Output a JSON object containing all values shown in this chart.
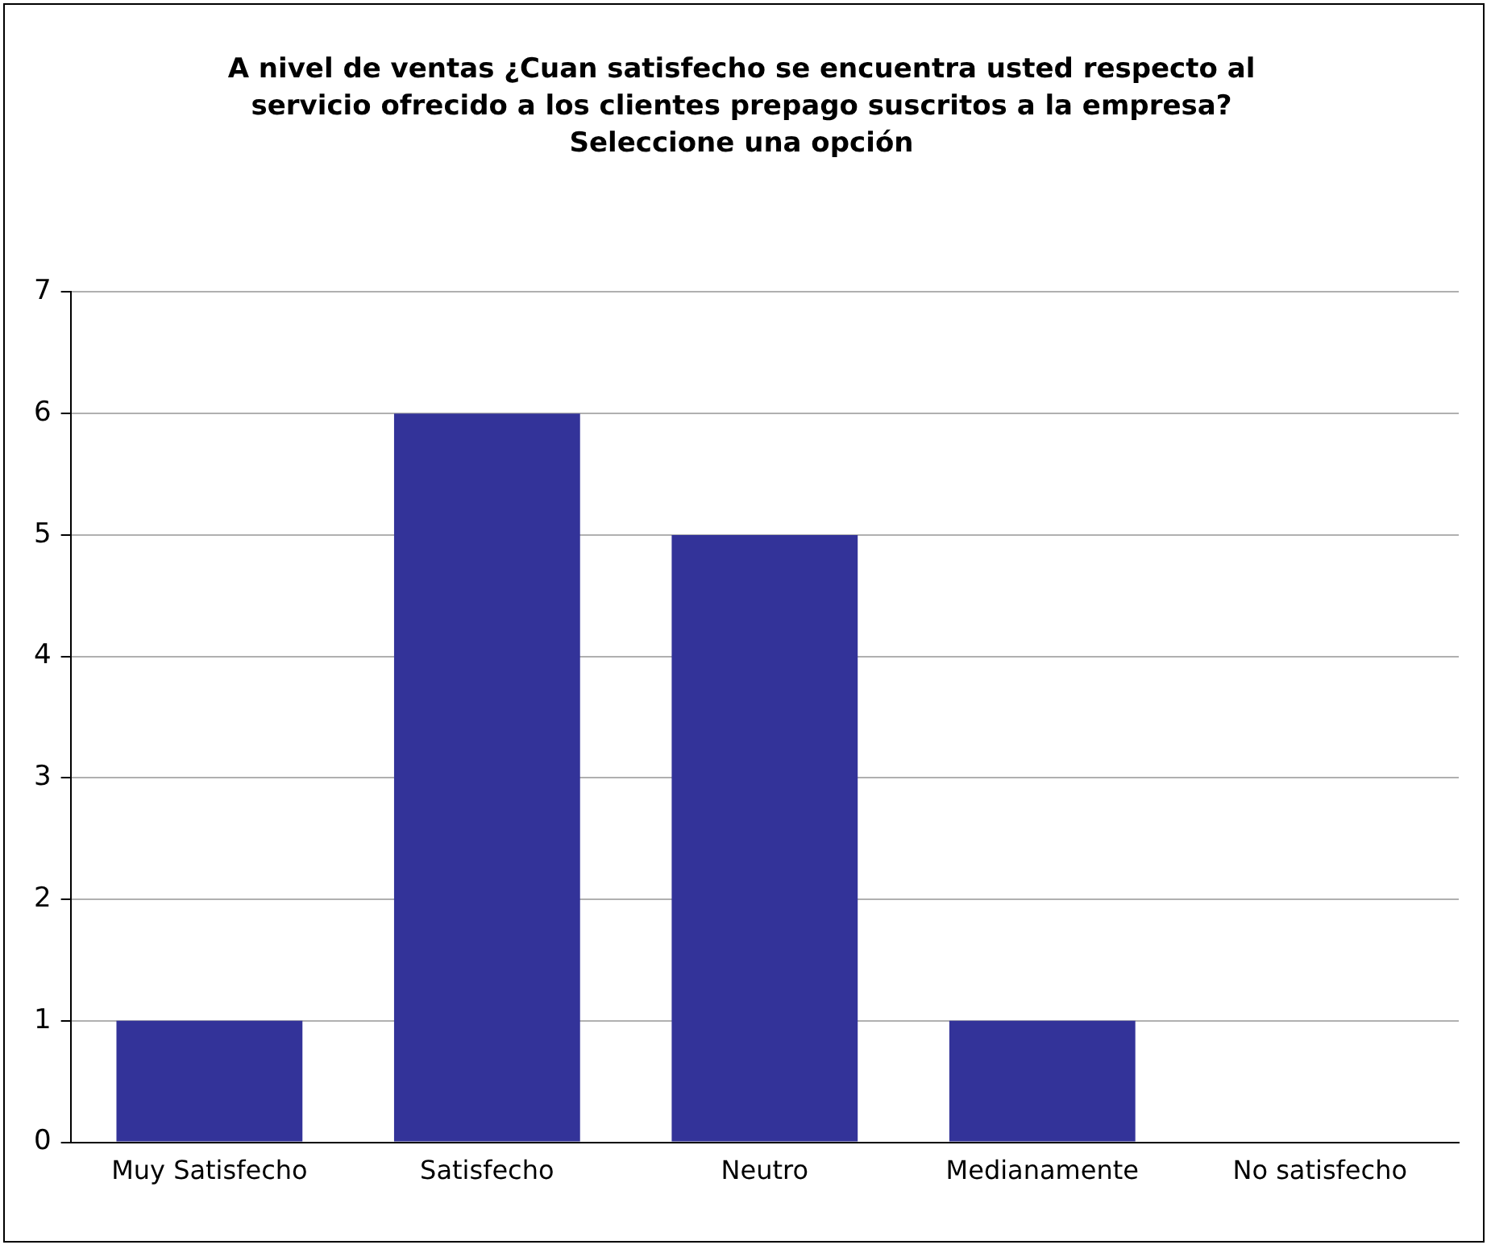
{
  "chart_data": {
    "type": "bar",
    "title": "A nivel de ventas ¿Cuan satisfecho se encuentra usted respecto al servicio ofrecido a los clientes prepago suscritos a la empresa? Seleccione una opción",
    "categories": [
      "Muy Satisfecho",
      "Satisfecho",
      "Neutro",
      "Medianamente",
      "No satisfecho"
    ],
    "values": [
      1,
      6,
      5,
      1,
      0
    ],
    "color": "#333399",
    "ylim": [
      0,
      7
    ],
    "yticks": [
      0,
      1,
      2,
      3,
      4,
      5,
      6,
      7
    ],
    "grid": "y"
  }
}
